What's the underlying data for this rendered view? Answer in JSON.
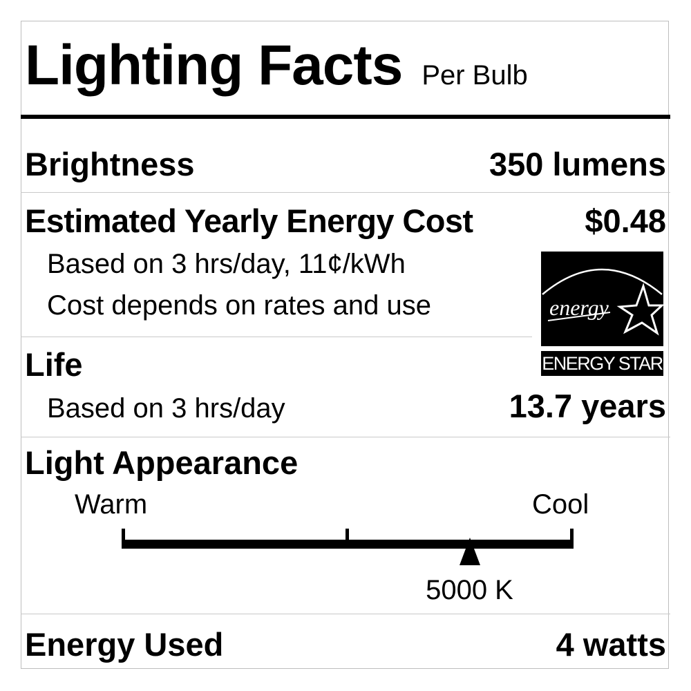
{
  "header": {
    "title": "Lighting Facts",
    "subtitle": "Per Bulb"
  },
  "brightness": {
    "label": "Brightness",
    "value": "350 lumens"
  },
  "energy_cost": {
    "label": "Estimated Yearly Energy Cost",
    "value": "$0.48",
    "note1": "Based on 3 hrs/day, 11¢/kWh",
    "note2": "Cost depends on rates and use"
  },
  "energy_star": {
    "script_text": "energy",
    "label": "ENERGY STAR"
  },
  "life": {
    "label": "Life",
    "note": "Based on 3 hrs/day",
    "value": "13.7 years"
  },
  "appearance": {
    "label": "Light Appearance",
    "warm_label": "Warm",
    "cool_label": "Cool",
    "value": "5000 K",
    "marker_fraction": 0.77
  },
  "energy_used": {
    "label": "Energy Used",
    "value": "4 watts"
  }
}
